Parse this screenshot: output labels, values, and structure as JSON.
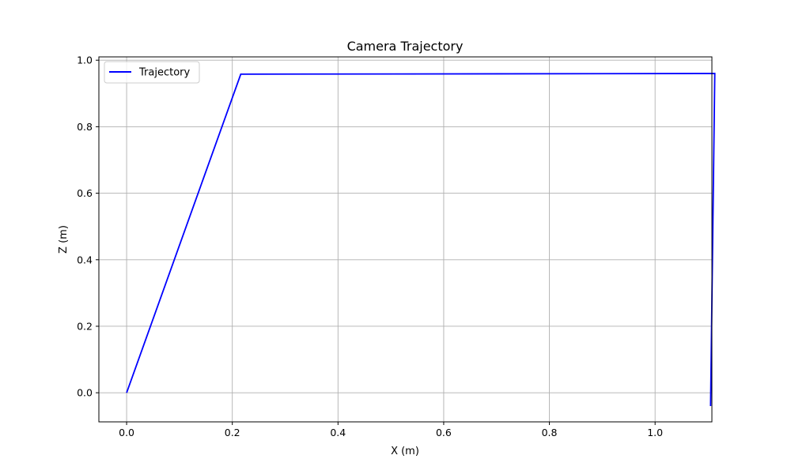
{
  "chart_data": {
    "type": "line",
    "title": "Camera Trajectory",
    "xlabel": "X (m)",
    "ylabel": "Z (m)",
    "xlim": [
      -0.0525,
      1.1075
    ],
    "ylim": [
      -0.0875,
      1.01
    ],
    "xticks": [
      0.0,
      0.2,
      0.4,
      0.6,
      0.8,
      1.0
    ],
    "yticks": [
      0.0,
      0.2,
      0.4,
      0.6,
      0.8,
      1.0
    ],
    "xtick_labels": [
      "0.0",
      "0.2",
      "0.4",
      "0.6",
      "0.8",
      "1.0"
    ],
    "ytick_labels": [
      "0.0",
      "0.2",
      "0.4",
      "0.6",
      "0.8",
      "1.0"
    ],
    "grid": true,
    "legend_position": "top-left",
    "series": [
      {
        "name": "Trajectory",
        "color": "#0000ff",
        "x": [
          0.0,
          0.216,
          1.113,
          1.105
        ],
        "y": [
          0.0,
          0.958,
          0.96,
          -0.04
        ]
      }
    ]
  }
}
